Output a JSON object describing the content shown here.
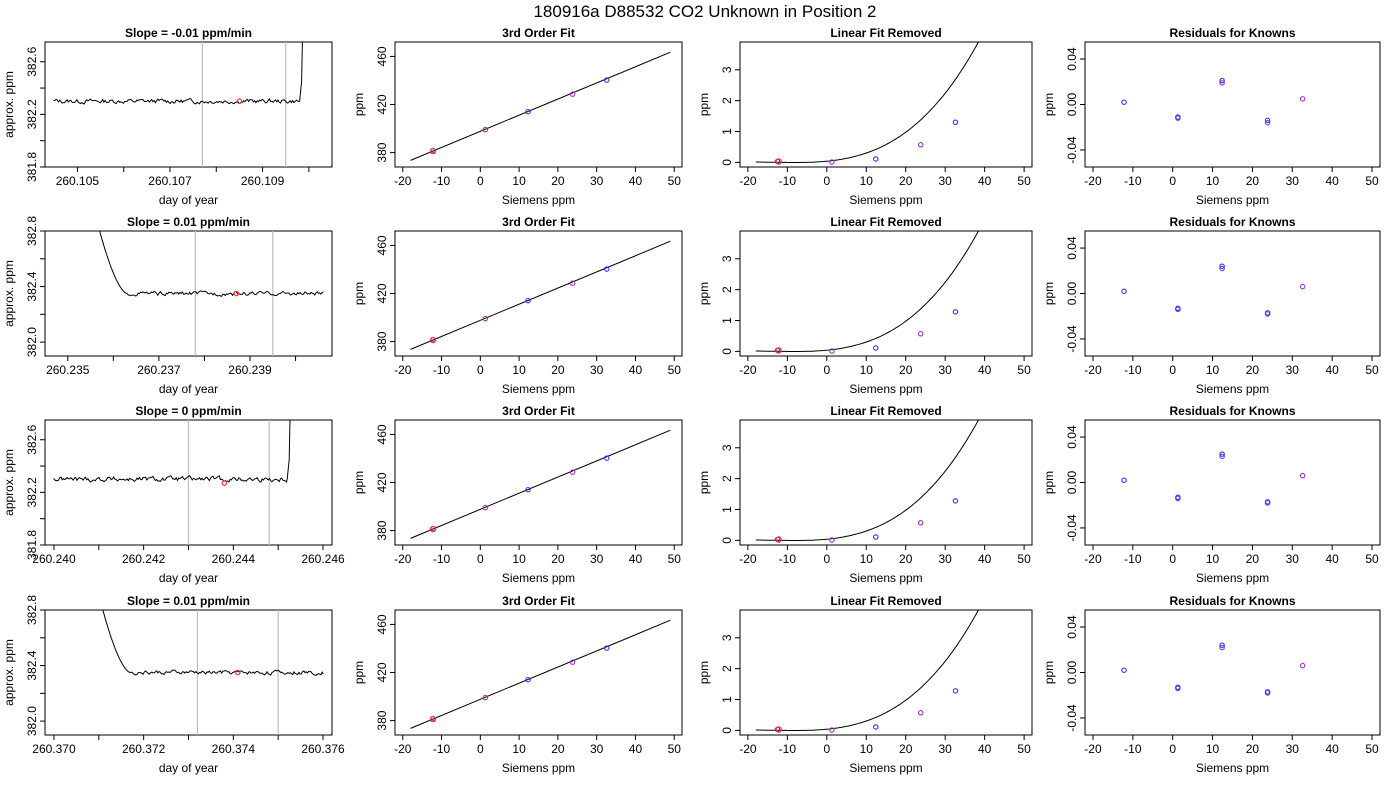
{
  "figure_title": "180916a      D88532    CO2 Unknown in Position  2",
  "chart_data": [
    {
      "type": "line",
      "title": "Slope =  -0.01  ppm/min",
      "xlabel": "day of year",
      "ylabel": "approx. ppm",
      "xlim": [
        260.1043,
        260.1105
      ],
      "ylim": [
        381.8,
        382.75
      ],
      "xticks": [
        "260.105",
        "260.107",
        "260.109"
      ],
      "yticks": [
        "381.8",
        "382.2",
        "382.6"
      ],
      "trace": {
        "level": 382.3,
        "noise": 0.014,
        "spike_at": 260.1098,
        "spike_side": "end"
      },
      "vlines": [
        260.1077,
        260.1095
      ],
      "marker": {
        "x": 260.1085,
        "y": 382.3
      }
    },
    {
      "type": "line",
      "title": "3rd Order Fit",
      "xlabel": "Siemens ppm",
      "ylabel": "ppm",
      "xlim": [
        -22,
        52
      ],
      "ylim": [
        368,
        472
      ],
      "xticks": [
        "-20",
        "-10",
        "0",
        "10",
        "20",
        "30",
        "40",
        "50"
      ],
      "yticks": [
        "380",
        "420",
        "460"
      ],
      "line": [
        [
          -18,
          373.5
        ],
        [
          49,
          463.5
        ]
      ],
      "points": [
        [
          -12.2,
          381.5
        ],
        [
          1.3,
          399.1
        ],
        [
          12.3,
          414
        ],
        [
          23.8,
          428.6
        ],
        [
          32.6,
          440.3
        ]
      ],
      "red_point": [
        -12.2,
        381.3
      ]
    },
    {
      "type": "line",
      "title": "Linear Fit Removed",
      "xlabel": "Siemens ppm",
      "ylabel": "ppm",
      "xlim": [
        -22,
        52
      ],
      "ylim": [
        -0.15,
        3.9
      ],
      "xticks": [
        "-20",
        "-10",
        "0",
        "10",
        "20",
        "30",
        "40",
        "50"
      ],
      "yticks": [
        "0",
        "1",
        "2",
        "3"
      ],
      "curve": {
        "x0": -18,
        "x1": 49,
        "coef": [
          0.0006,
          -0.0017,
          3.56e-05
        ]
      },
      "points": [
        [
          -12.5,
          0.03
        ],
        [
          1.3,
          0.01
        ],
        [
          12.4,
          0.11
        ],
        [
          23.8,
          0.57
        ],
        [
          32.6,
          1.3
        ]
      ],
      "red_point": [
        -12.2,
        0.03
      ]
    },
    {
      "type": "scatter",
      "title": "Residuals for Knowns",
      "xlabel": "Siemens ppm",
      "ylabel": "ppm",
      "xlim": [
        -22,
        52
      ],
      "ylim": [
        -0.055,
        0.055
      ],
      "xticks": [
        "-20",
        "-10",
        "0",
        "10",
        "20",
        "30",
        "40",
        "50"
      ],
      "yticks": [
        "-0.04",
        "0.00",
        "0.04"
      ],
      "points": [
        [
          -12.2,
          0.002
        ],
        [
          1.3,
          -0.012
        ],
        [
          1.3,
          -0.011
        ],
        [
          12.4,
          0.019
        ],
        [
          12.4,
          0.021
        ],
        [
          23.8,
          -0.016
        ],
        [
          23.8,
          -0.014
        ],
        [
          32.6,
          0.005
        ]
      ]
    },
    {
      "type": "line",
      "title": "Slope =  0.01  ppm/min",
      "xlabel": "day of year",
      "ylabel": "approx. ppm",
      "xlim": [
        260.2345,
        260.2408
      ],
      "ylim": [
        381.9,
        382.8
      ],
      "xticks": [
        "260.235",
        "260.237",
        "260.239"
      ],
      "yticks": [
        "382.0",
        "382.4",
        "382.8"
      ],
      "trace": {
        "level": 382.35,
        "noise": 0.012,
        "spike_at": 260.2363,
        "spike_side": "start"
      },
      "vlines": [
        260.2378,
        260.2395
      ],
      "marker": {
        "x": 260.2387,
        "y": 382.35
      }
    },
    {
      "type": "line",
      "title": "3rd Order Fit",
      "xlabel": "Siemens ppm",
      "ylabel": "ppm",
      "xlim": [
        -22,
        52
      ],
      "ylim": [
        368,
        472
      ],
      "xticks": [
        "-20",
        "-10",
        "0",
        "10",
        "20",
        "30",
        "40",
        "50"
      ],
      "yticks": [
        "380",
        "420",
        "460"
      ],
      "line": [
        [
          -18,
          373.5
        ],
        [
          49,
          463.5
        ]
      ],
      "points": [
        [
          -12.2,
          381.5
        ],
        [
          1.3,
          399.1
        ],
        [
          12.3,
          414
        ],
        [
          23.8,
          428.6
        ],
        [
          32.6,
          440.3
        ]
      ],
      "red_point": [
        -12.2,
        381.3
      ]
    },
    {
      "type": "line",
      "title": "Linear Fit Removed",
      "xlabel": "Siemens ppm",
      "ylabel": "ppm",
      "xlim": [
        -22,
        52
      ],
      "ylim": [
        -0.15,
        3.9
      ],
      "xticks": [
        "-20",
        "-10",
        "0",
        "10",
        "20",
        "30",
        "40",
        "50"
      ],
      "yticks": [
        "0",
        "1",
        "2",
        "3"
      ],
      "curve": {
        "x0": -18,
        "x1": 49,
        "coef": [
          0.0006,
          -0.0017,
          3.56e-05
        ]
      },
      "points": [
        [
          -12.5,
          0.03
        ],
        [
          1.3,
          0.01
        ],
        [
          12.4,
          0.11
        ],
        [
          23.8,
          0.57
        ],
        [
          32.6,
          1.28
        ]
      ],
      "red_point": [
        -12.2,
        0.03
      ]
    },
    {
      "type": "scatter",
      "title": "Residuals for Knowns",
      "xlabel": "Siemens ppm",
      "ylabel": "ppm",
      "xlim": [
        -22,
        52
      ],
      "ylim": [
        -0.055,
        0.055
      ],
      "xticks": [
        "-20",
        "-10",
        "0",
        "10",
        "20",
        "30",
        "40",
        "50"
      ],
      "yticks": [
        "-0.04",
        "0.00",
        "0.04"
      ],
      "points": [
        [
          -12.2,
          0.002
        ],
        [
          1.3,
          -0.014
        ],
        [
          1.3,
          -0.013
        ],
        [
          12.4,
          0.022
        ],
        [
          12.4,
          0.024
        ],
        [
          23.8,
          -0.018
        ],
        [
          23.8,
          -0.017
        ],
        [
          32.6,
          0.006
        ]
      ]
    },
    {
      "type": "line",
      "title": "Slope =  0  ppm/min",
      "xlabel": "day of year",
      "ylabel": "approx. ppm",
      "xlim": [
        260.2398,
        260.2462
      ],
      "ylim": [
        381.8,
        382.75
      ],
      "xticks": [
        "260.240",
        "260.242",
        "260.244",
        "260.246"
      ],
      "yticks": [
        "381.8",
        "382.2",
        "382.6"
      ],
      "trace": {
        "level": 382.3,
        "noise": 0.016,
        "spike_at": 260.2452,
        "spike_side": "end"
      },
      "vlines": [
        260.243,
        260.2448
      ],
      "marker": {
        "x": 260.2438,
        "y": 382.27
      }
    },
    {
      "type": "line",
      "title": "3rd Order Fit",
      "xlabel": "Siemens ppm",
      "ylabel": "ppm",
      "xlim": [
        -22,
        52
      ],
      "ylim": [
        368,
        472
      ],
      "xticks": [
        "-20",
        "-10",
        "0",
        "10",
        "20",
        "30",
        "40",
        "50"
      ],
      "yticks": [
        "380",
        "420",
        "460"
      ],
      "line": [
        [
          -18,
          373.5
        ],
        [
          49,
          463.5
        ]
      ],
      "points": [
        [
          -12.2,
          381.5
        ],
        [
          1.3,
          399.1
        ],
        [
          12.3,
          414
        ],
        [
          23.8,
          428.6
        ],
        [
          32.6,
          440.3
        ]
      ],
      "red_point": [
        -12.2,
        381.3
      ]
    },
    {
      "type": "line",
      "title": "Linear Fit Removed",
      "xlabel": "Siemens ppm",
      "ylabel": "ppm",
      "xlim": [
        -22,
        52
      ],
      "ylim": [
        -0.15,
        3.9
      ],
      "xticks": [
        "-20",
        "-10",
        "0",
        "10",
        "20",
        "30",
        "40",
        "50"
      ],
      "yticks": [
        "0",
        "1",
        "2",
        "3"
      ],
      "curve": {
        "x0": -18,
        "x1": 49,
        "coef": [
          0.0006,
          -0.0017,
          3.56e-05
        ]
      },
      "points": [
        [
          -12.5,
          0.03
        ],
        [
          1.3,
          0.01
        ],
        [
          12.4,
          0.11
        ],
        [
          23.8,
          0.57
        ],
        [
          32.6,
          1.28
        ]
      ],
      "red_point": [
        -12.2,
        0.03
      ]
    },
    {
      "type": "scatter",
      "title": "Residuals for Knowns",
      "xlabel": "Siemens ppm",
      "ylabel": "ppm",
      "xlim": [
        -22,
        52
      ],
      "ylim": [
        -0.055,
        0.055
      ],
      "xticks": [
        "-20",
        "-10",
        "0",
        "10",
        "20",
        "30",
        "40",
        "50"
      ],
      "yticks": [
        "-0.04",
        "0.00",
        "0.04"
      ],
      "points": [
        [
          -12.2,
          0.002
        ],
        [
          1.3,
          -0.014
        ],
        [
          1.3,
          -0.013
        ],
        [
          12.4,
          0.023
        ],
        [
          12.4,
          0.025
        ],
        [
          23.8,
          -0.018
        ],
        [
          23.8,
          -0.017
        ],
        [
          32.6,
          0.006
        ]
      ]
    },
    {
      "type": "line",
      "title": "Slope =  0.01  ppm/min",
      "xlabel": "day of year",
      "ylabel": "approx. ppm",
      "xlim": [
        260.3698,
        260.3762
      ],
      "ylim": [
        381.9,
        382.8
      ],
      "xticks": [
        "260.370",
        "260.372",
        "260.374",
        "260.376"
      ],
      "yticks": [
        "382.0",
        "382.4",
        "382.8"
      ],
      "trace": {
        "level": 382.35,
        "noise": 0.012,
        "spike_at": 260.3717,
        "spike_side": "start"
      },
      "vlines": [
        260.3732,
        260.375
      ],
      "marker": {
        "x": 260.3741,
        "y": 382.35
      }
    },
    {
      "type": "line",
      "title": "3rd Order Fit",
      "xlabel": "Siemens ppm",
      "ylabel": "ppm",
      "xlim": [
        -22,
        52
      ],
      "ylim": [
        368,
        472
      ],
      "xticks": [
        "-20",
        "-10",
        "0",
        "10",
        "20",
        "30",
        "40",
        "50"
      ],
      "yticks": [
        "380",
        "420",
        "460"
      ],
      "line": [
        [
          -18,
          373.5
        ],
        [
          49,
          463.5
        ]
      ],
      "points": [
        [
          -12.2,
          381.5
        ],
        [
          1.3,
          399.1
        ],
        [
          12.3,
          414
        ],
        [
          23.8,
          428.6
        ],
        [
          32.6,
          440.3
        ]
      ],
      "red_point": [
        -12.2,
        381.3
      ]
    },
    {
      "type": "line",
      "title": "Linear Fit Removed",
      "xlabel": "Siemens ppm",
      "ylabel": "ppm",
      "xlim": [
        -22,
        52
      ],
      "ylim": [
        -0.15,
        3.9
      ],
      "xticks": [
        "-20",
        "-10",
        "0",
        "10",
        "20",
        "30",
        "40",
        "50"
      ],
      "yticks": [
        "0",
        "1",
        "2",
        "3"
      ],
      "curve": {
        "x0": -18,
        "x1": 49,
        "coef": [
          0.0006,
          -0.0017,
          3.56e-05
        ]
      },
      "points": [
        [
          -12.5,
          0.03
        ],
        [
          1.3,
          0.01
        ],
        [
          12.4,
          0.11
        ],
        [
          23.8,
          0.57
        ],
        [
          32.6,
          1.28
        ]
      ],
      "red_point": [
        -12.2,
        0.03
      ]
    },
    {
      "type": "scatter",
      "title": "Residuals for Knowns",
      "xlabel": "Siemens ppm",
      "ylabel": "ppm",
      "xlim": [
        -22,
        52
      ],
      "ylim": [
        -0.055,
        0.055
      ],
      "xticks": [
        "-20",
        "-10",
        "0",
        "10",
        "20",
        "30",
        "40",
        "50"
      ],
      "yticks": [
        "-0.04",
        "0.00",
        "0.04"
      ],
      "points": [
        [
          -12.2,
          0.002
        ],
        [
          1.3,
          -0.014
        ],
        [
          1.3,
          -0.013
        ],
        [
          12.4,
          0.022
        ],
        [
          12.4,
          0.024
        ],
        [
          23.8,
          -0.018
        ],
        [
          23.8,
          -0.017
        ],
        [
          32.6,
          0.006
        ]
      ]
    }
  ],
  "colors": {
    "axis": "#000000",
    "trace": "#000000",
    "vline": "#bfbfbf",
    "point": "#3333ff",
    "point_alt": "#9933cc",
    "red": "#ff3333"
  }
}
